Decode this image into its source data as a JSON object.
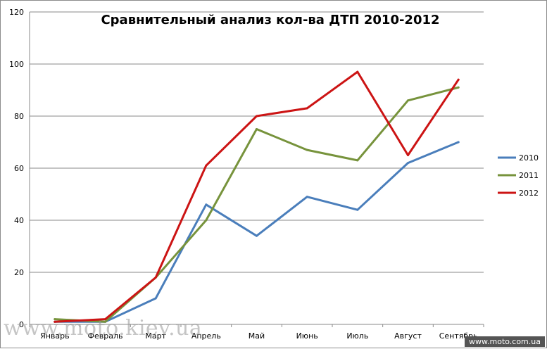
{
  "chart_data": {
    "type": "line",
    "title": "Сравнительный анализ кол-ва ДТП 2010-2012",
    "xlabel": "",
    "ylabel": "",
    "ylim": [
      0,
      120
    ],
    "yticks": [
      "0",
      "20",
      "40",
      "60",
      "80",
      "100",
      "120"
    ],
    "grid": true,
    "legend_position": "right",
    "categories": [
      "Январь",
      "Февраль",
      "Март",
      "Апрель",
      "Май",
      "Июнь",
      "Июль",
      "Август",
      "Сентябрь"
    ],
    "series": [
      {
        "name": "2010",
        "color": "#4a7ebb",
        "values": [
          1,
          1,
          10,
          46,
          34,
          49,
          44,
          62,
          70
        ]
      },
      {
        "name": "2011",
        "color": "#77933c",
        "values": [
          2,
          1,
          18,
          40,
          75,
          67,
          63,
          86,
          91
        ]
      },
      {
        "name": "2012",
        "color": "#cc1414",
        "values": [
          1,
          2,
          18,
          61,
          80,
          83,
          97,
          65,
          94
        ]
      }
    ]
  },
  "watermarks": {
    "left": "www.moto.kiev.ua",
    "right": "www.moto.com.ua"
  }
}
